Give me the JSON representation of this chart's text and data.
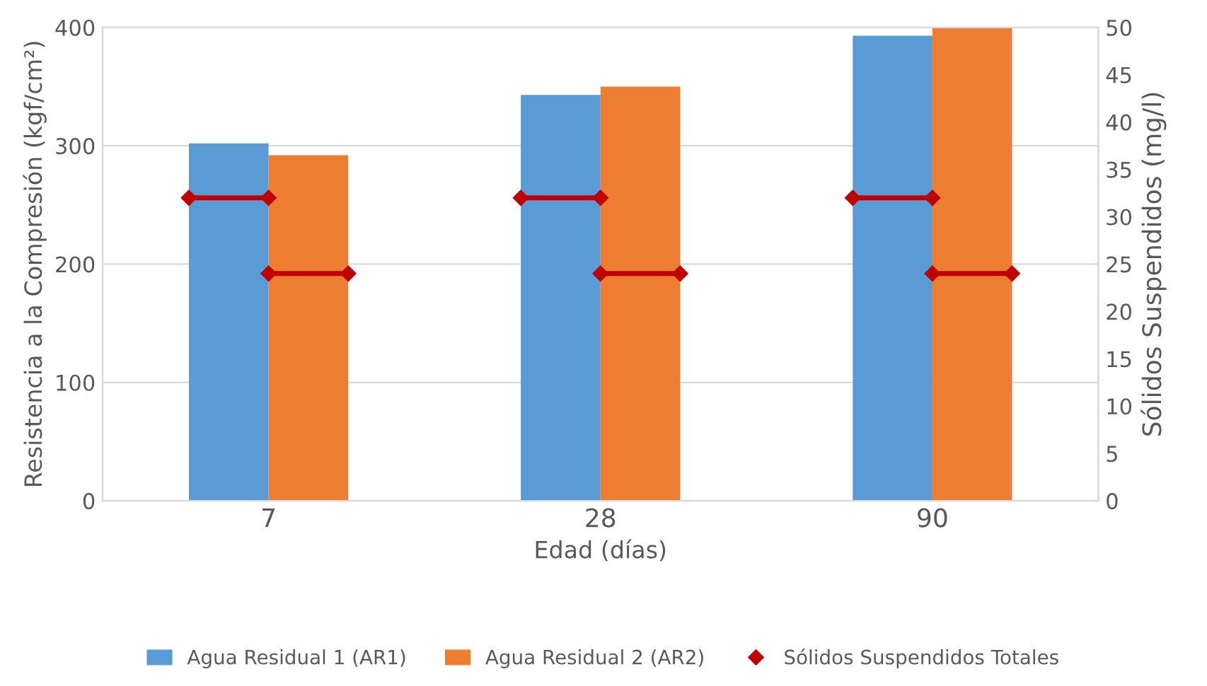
{
  "chart_data": {
    "type": "bar",
    "xlabel": "Edad (días)",
    "ylabel": "Resistencia a la Compresión (kgf/cm²)",
    "y2label": "Sólidos Suspendidos (mg/l)",
    "categories": [
      "7",
      "28",
      "90"
    ],
    "series": [
      {
        "name": "Agua Residual 1 (AR1)",
        "color": "#5b9bd5",
        "values": [
          302,
          343,
          393
        ]
      },
      {
        "name": "Agua Residual 2 (AR2)",
        "color": "#ed7d31",
        "values": [
          292,
          350,
          400
        ]
      },
      {
        "name": "Sólidos Suspendidos Totales",
        "type": "scatter",
        "axis": "y2",
        "color": "#c00000",
        "marker": "diamond",
        "x": [
          "7",
          "7",
          "28",
          "28",
          "90",
          "90"
        ],
        "values": [
          32,
          24,
          32,
          24,
          32,
          24
        ]
      }
    ],
    "ylim": [
      0,
      400
    ],
    "yticks": [
      0,
      100,
      200,
      300,
      400
    ],
    "y2lim": [
      0,
      50
    ],
    "y2ticks": [
      0,
      5,
      10,
      15,
      20,
      25,
      30,
      35,
      40,
      45,
      50
    ],
    "grid": "y",
    "legend": "bottom"
  }
}
